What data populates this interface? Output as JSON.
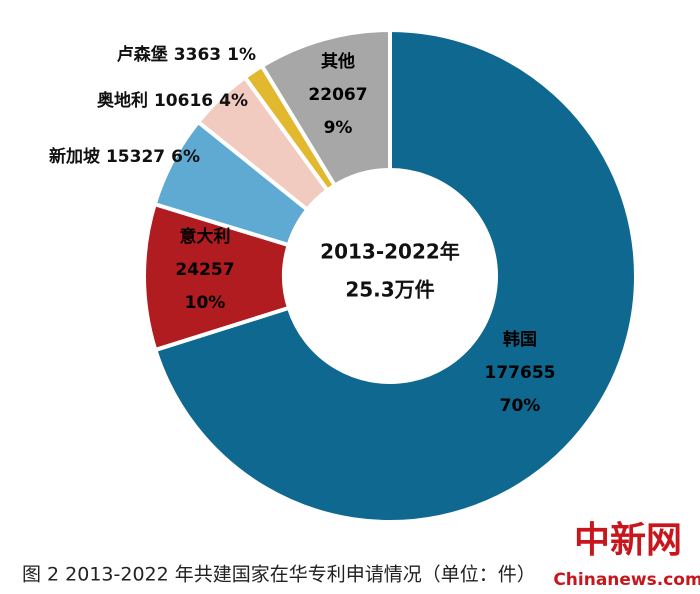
{
  "chart_data": {
    "type": "donut",
    "center_text": [
      "2013-2022年",
      "25.3万件"
    ],
    "categories": [
      "韩国",
      "意大利",
      "新加坡",
      "奥地利",
      "卢森堡",
      "其他"
    ],
    "values": [
      177655,
      24257,
      15327,
      10616,
      3363,
      22067
    ],
    "percent_labels": [
      "70%",
      "10%",
      "6%",
      "4%",
      "1%",
      "9%"
    ],
    "colors": [
      "#0f6890",
      "#b01c1f",
      "#5eaad2",
      "#f1cbbf",
      "#e2b92e",
      "#a7a7a7"
    ],
    "caption": "图 2 2013-2022 年共建国家在华专利申请情况（单位：件）",
    "watermark": [
      "中新网",
      "Chinanews.com"
    ]
  }
}
